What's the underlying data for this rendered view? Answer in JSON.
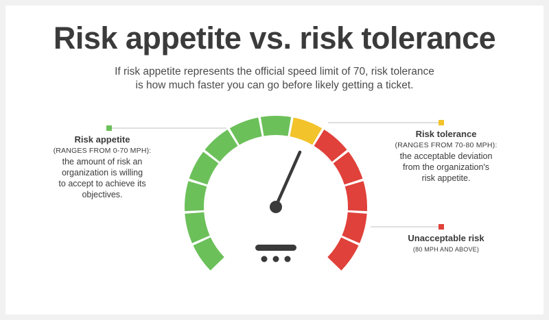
{
  "title": "Risk appetite vs. risk tolerance",
  "subtitle": {
    "line1": "If risk appetite represents the official speed limit of 70, risk tolerance",
    "line2": "is how much faster you can go before likely getting a ticket."
  },
  "labels": {
    "appetite": {
      "heading": "Risk appetite",
      "range": "(RANGES FROM 0-70 MPH):",
      "line1": "the amount of risk an",
      "line2": "organization is willing",
      "line3": "to accept to achieve its",
      "line4": "objectives."
    },
    "tolerance": {
      "heading": "Risk tolerance",
      "range": "(RANGES FROM 70-80 MPH):",
      "line1": "the acceptable deviation",
      "line2": "from the organization's",
      "line3": "risk appetite."
    },
    "unacceptable": {
      "heading": "Unacceptable risk",
      "range": "(80 MPH AND ABOVE)"
    }
  },
  "gauge": {
    "segments_green": 7,
    "segments_yellow": 1,
    "segments_red": 5,
    "colors": {
      "green": "#6cc05a",
      "yellow": "#f2c32a",
      "red": "#e0413a",
      "dark": "#3a3a3a",
      "line": "#cccccc"
    },
    "needle": "speedometer-needle-icon",
    "base": "speedometer-base-icon"
  }
}
